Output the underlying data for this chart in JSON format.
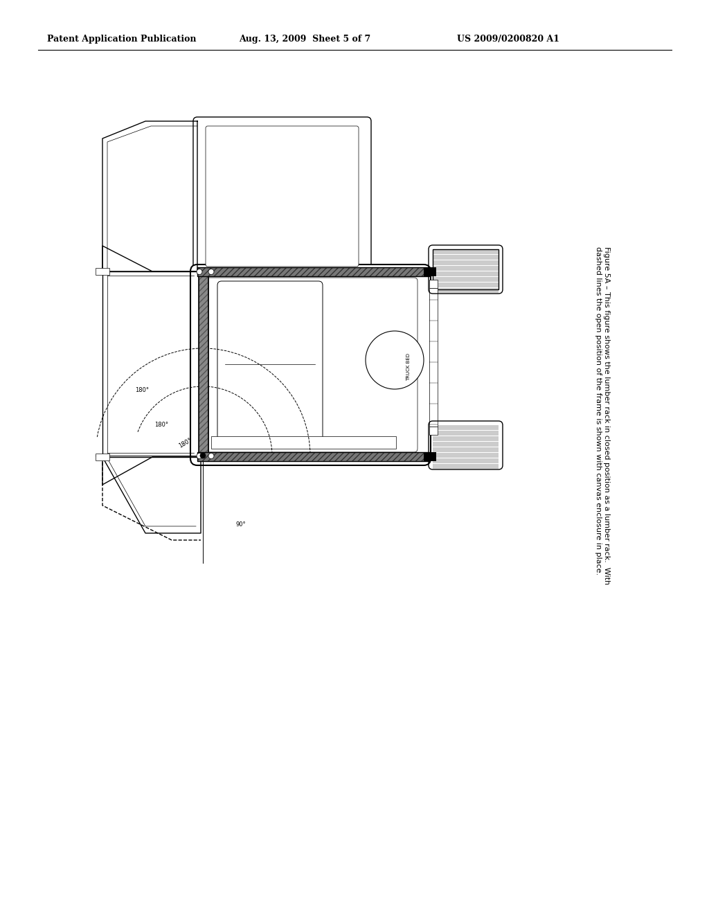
{
  "title_left": "Patent Application Publication",
  "title_center": "Aug. 13, 2009  Sheet 5 of 7",
  "title_right": "US 2009/0200820 A1",
  "caption_line1": "Figure 5A – This figure shows the lumber rack in closed position as a lumber rack.  With",
  "caption_line2": "dashed lines the open position of the frame is shown with canvas enclosure in place.",
  "background_color": "#ffffff",
  "line_color": "#000000",
  "header_fontsize": 9,
  "caption_fontsize": 8.0
}
